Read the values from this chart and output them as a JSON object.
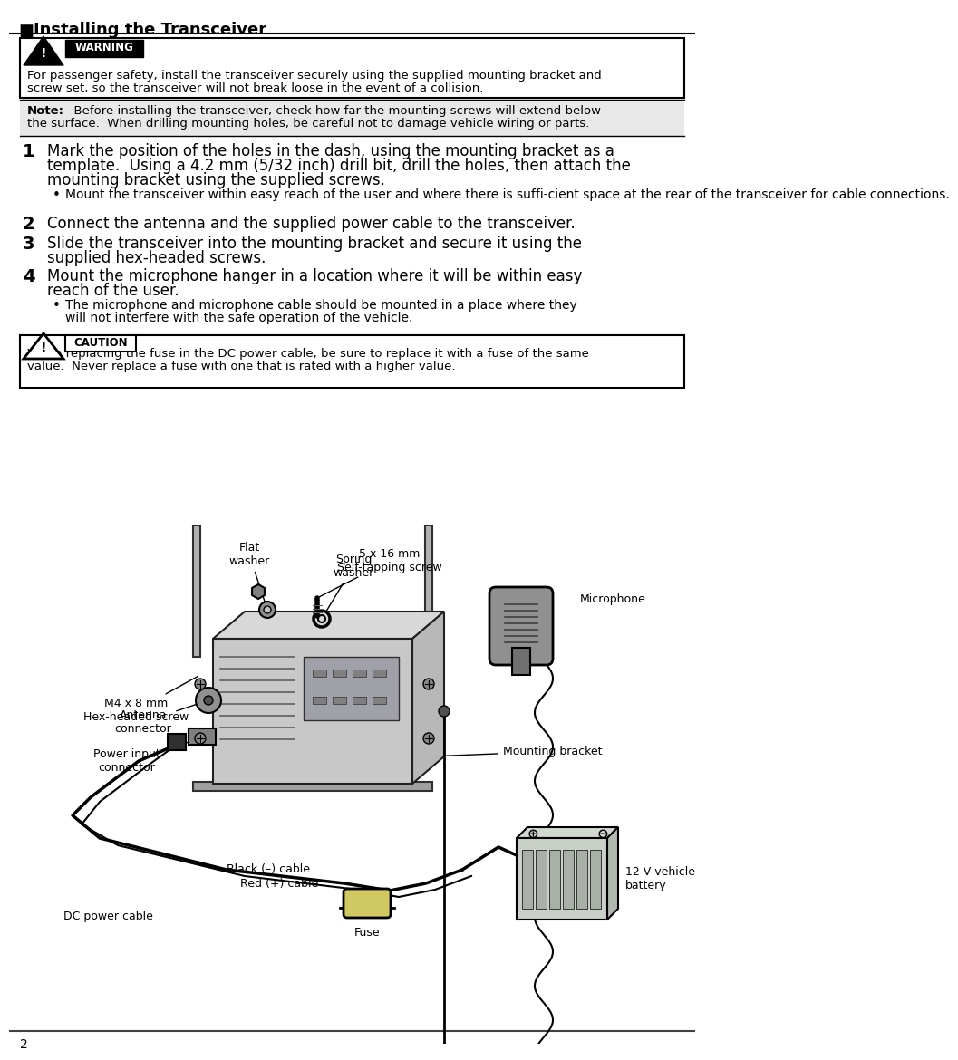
{
  "title_bullet": "■",
  "title": "Installing the Transceiver",
  "warning_label": "WARNING",
  "warning_text_1": "For passenger safety, install the transceiver securely using the supplied mounting bracket and",
  "warning_text_2": "screw set, so the transceiver will not break loose in the event of a collision.",
  "note_bold": "Note:",
  "note_line1": "  Before installing the transceiver, check how far the mounting screws will extend below",
  "note_line2": "the surface.  When drilling mounting holes, be careful not to damage vehicle wiring or parts.",
  "step1_num": "1",
  "step1_line1": "Mark the position of the holes in the dash, using the mounting bracket as a",
  "step1_line2": "template.  Using a 4.2 mm (5/32 inch) drill bit, drill the holes, then attach the",
  "step1_line3": "mounting bracket using the supplied screws.",
  "step1_bullet": "Mount the transceiver within easy reach of the user and where there is suffi­cient space at the rear of the transceiver for cable connections.",
  "step2_num": "2",
  "step2_text": "Connect the antenna and the supplied power cable to the transceiver.",
  "step3_num": "3",
  "step3_line1": "Slide the transceiver into the mounting bracket and secure it using the",
  "step3_line2": "supplied hex-headed screws.",
  "step4_num": "4",
  "step4_line1": "Mount the microphone hanger in a location where it will be within easy",
  "step4_line2": "reach of the user.",
  "step4_bullet_1": "The microphone and microphone cable should be mounted in a place where they",
  "step4_bullet_2": "will not interfere with the safe operation of the vehicle.",
  "caution_label": "CAUTION",
  "caution_text_1": "When replacing the fuse in the DC power cable, be sure to replace it with a fuse of the same",
  "caution_text_2": "value.  Never replace a fuse with one that is rated with a higher value.",
  "lbl_flat": "Flat\nwasher",
  "lbl_spring": "Spring\nwasher",
  "lbl_micro": "Microphone",
  "lbl_m4": "M4 x 8 mm\nHex-headed screw",
  "lbl_selftap": "5 x 16 mm\nSelf-tapping screw",
  "lbl_antenna": "Antenna\nconnector",
  "lbl_bracket": "Mounting bracket",
  "lbl_power": "Power input\nconnector",
  "lbl_black": "Black (–) cable",
  "lbl_red": "Red (+) cable",
  "lbl_dc": "DC power cable",
  "lbl_fuse": "Fuse",
  "lbl_battery": "12 V vehicle\nbattery",
  "page": "2",
  "bg": "#ffffff"
}
